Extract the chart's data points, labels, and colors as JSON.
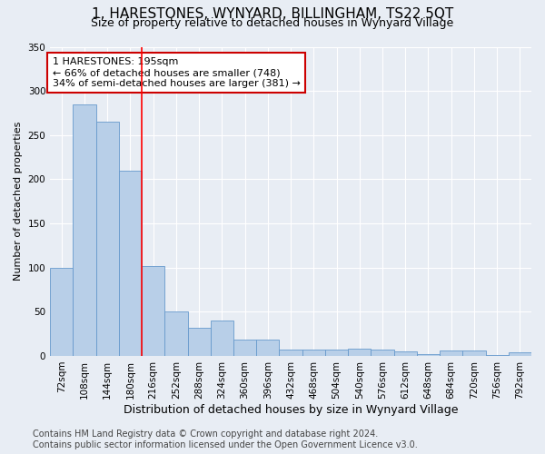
{
  "title": "1, HARESTONES, WYNYARD, BILLINGHAM, TS22 5QT",
  "subtitle": "Size of property relative to detached houses in Wynyard Village",
  "xlabel": "Distribution of detached houses by size in Wynyard Village",
  "ylabel": "Number of detached properties",
  "bar_color": "#b8cfe8",
  "bar_edge_color": "#6699cc",
  "background_color": "#e8edf4",
  "categories": [
    "72sqm",
    "108sqm",
    "144sqm",
    "180sqm",
    "216sqm",
    "252sqm",
    "288sqm",
    "324sqm",
    "360sqm",
    "396sqm",
    "432sqm",
    "468sqm",
    "504sqm",
    "540sqm",
    "576sqm",
    "612sqm",
    "648sqm",
    "684sqm",
    "720sqm",
    "756sqm",
    "792sqm"
  ],
  "values": [
    100,
    285,
    265,
    210,
    102,
    50,
    32,
    40,
    18,
    18,
    7,
    7,
    7,
    8,
    7,
    5,
    2,
    6,
    6,
    1,
    4
  ],
  "ylim": [
    0,
    350
  ],
  "yticks": [
    0,
    50,
    100,
    150,
    200,
    250,
    300,
    350
  ],
  "red_line_x": 3.5,
  "annotation_text": "1 HARESTONES: 195sqm\n← 66% of detached houses are smaller (748)\n34% of semi-detached houses are larger (381) →",
  "annotation_box_color": "#ffffff",
  "annotation_box_edgecolor": "#cc0000",
  "footer_line1": "Contains HM Land Registry data © Crown copyright and database right 2024.",
  "footer_line2": "Contains public sector information licensed under the Open Government Licence v3.0.",
  "grid_color": "#ffffff",
  "title_fontsize": 11,
  "subtitle_fontsize": 9,
  "xlabel_fontsize": 9,
  "ylabel_fontsize": 8,
  "tick_fontsize": 7.5,
  "footer_fontsize": 7,
  "ann_fontsize": 8
}
